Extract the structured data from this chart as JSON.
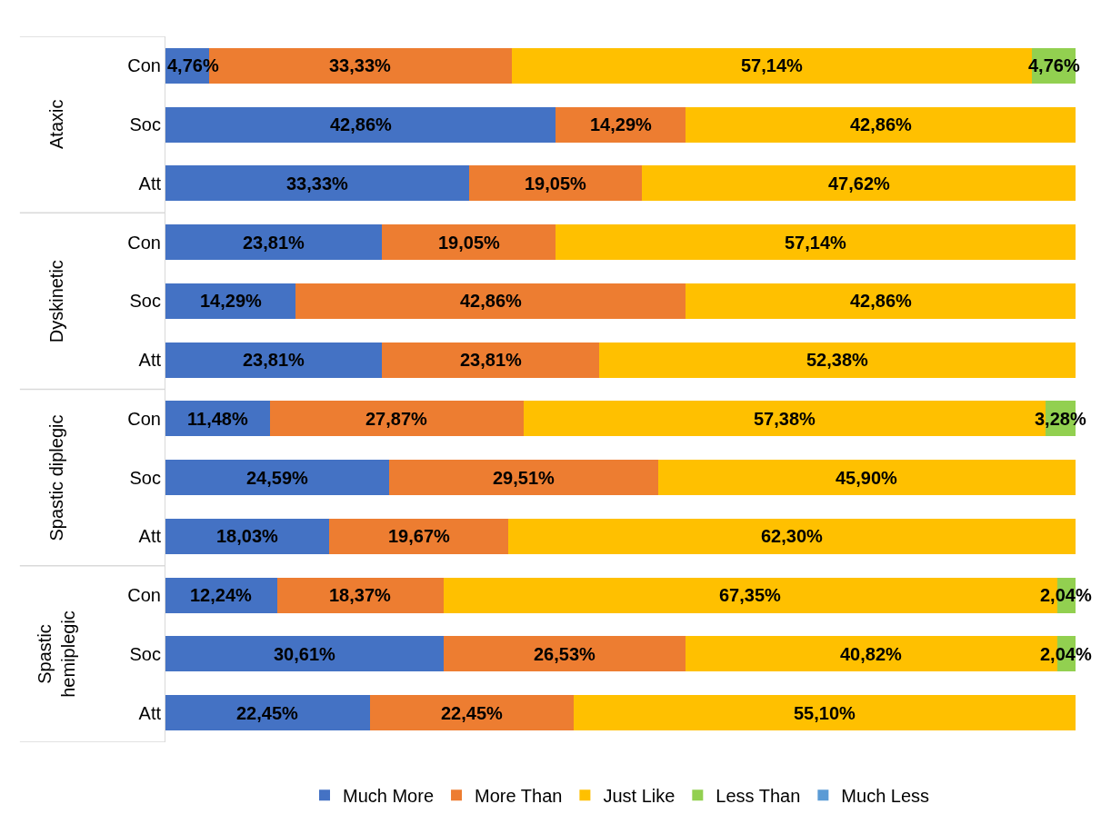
{
  "chart_data": {
    "type": "bar",
    "orientation": "horizontal",
    "stacked": true,
    "categories": [
      "Con",
      "Soc",
      "Att",
      "Con",
      "Soc",
      "Att",
      "Con",
      "Soc",
      "Att",
      "Con",
      "Soc",
      "Att"
    ],
    "annotations": [
      "Ataxic",
      "Dyskinetic",
      "Spastic diplegic",
      "Spastic\nhemiplegic"
    ],
    "xlim": [
      0,
      100
    ],
    "tick_labels": "y",
    "grid": false,
    "legend": "bottom",
    "series": [
      {
        "name": "Much More",
        "color": "#4472c4",
        "values": [
          4.76,
          42.86,
          33.33,
          23.81,
          14.29,
          23.81,
          11.48,
          24.59,
          18.03,
          12.24,
          30.61,
          22.45
        ],
        "value_labels": [
          "4,76%",
          "42,86%",
          "33,33%",
          "23,81%",
          "14,29%",
          "23,81%",
          "11,48%",
          "24,59%",
          "18,03%",
          "12,24%",
          "30,61%",
          "22,45%"
        ]
      },
      {
        "name": "More Than",
        "color": "#ed7d31",
        "values": [
          33.33,
          14.29,
          19.05,
          19.05,
          42.86,
          23.81,
          27.87,
          29.51,
          19.67,
          18.37,
          26.53,
          22.45
        ],
        "value_labels": [
          "33,33%",
          "14,29%",
          "19,05%",
          "19,05%",
          "42,86%",
          "23,81%",
          "27,87%",
          "29,51%",
          "19,67%",
          "18,37%",
          "26,53%",
          "22,45%"
        ]
      },
      {
        "name": "Just Like",
        "color": "#ffc000",
        "values": [
          57.14,
          42.86,
          47.62,
          57.14,
          42.86,
          52.38,
          57.38,
          45.9,
          62.3,
          67.35,
          40.82,
          55.1
        ],
        "value_labels": [
          "57,14%",
          "42,86%",
          "47,62%",
          "57,14%",
          "42,86%",
          "52,38%",
          "57,38%",
          "45,90%",
          "62,30%",
          "67,35%",
          "40,82%",
          "55,10%"
        ]
      },
      {
        "name": "Less Than",
        "color": "#92d050",
        "values": [
          4.76,
          null,
          null,
          null,
          null,
          null,
          3.28,
          null,
          null,
          2.04,
          2.04,
          null
        ],
        "value_labels": [
          "4,76%",
          null,
          null,
          null,
          null,
          null,
          "3,28%",
          null,
          null,
          "2,04%",
          "2,04%",
          null
        ]
      },
      {
        "name": "Much Less",
        "color": "#5b9bd5",
        "values": [
          null,
          null,
          null,
          null,
          null,
          null,
          null,
          null,
          null,
          null,
          null,
          null
        ],
        "value_labels": [
          null,
          null,
          null,
          null,
          null,
          null,
          null,
          null,
          null,
          null,
          null,
          null
        ]
      }
    ]
  }
}
